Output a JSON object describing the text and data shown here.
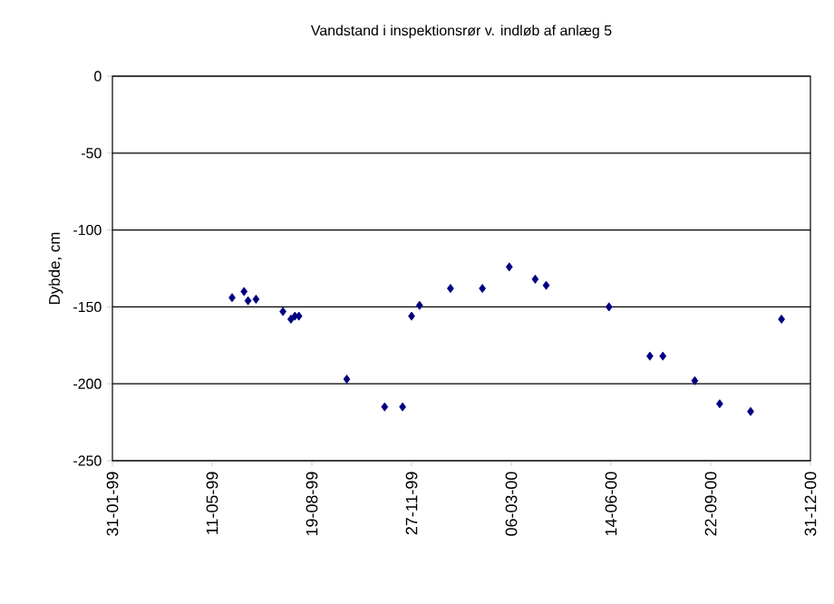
{
  "chart_data": {
    "type": "scatter",
    "title": "Vandstand i inspektionsrør v. indløb af anlæg 5",
    "ylabel": "Dybde, cm",
    "x": [
      "1999-05-31",
      "1999-06-12",
      "1999-06-16",
      "1999-06-24",
      "1999-07-21",
      "1999-07-29",
      "1999-08-02",
      "1999-08-06",
      "1999-09-23",
      "1999-10-31",
      "1999-11-18",
      "1999-11-27",
      "1999-12-05",
      "2000-01-05",
      "2000-02-06",
      "2000-03-04",
      "2000-03-30",
      "2000-04-10",
      "2000-06-12",
      "2000-07-23",
      "2000-08-05",
      "2000-09-06",
      "2000-10-01",
      "2000-11-01",
      "2000-12-02"
    ],
    "values": [
      -144,
      -140,
      -146,
      -145,
      -153,
      -158,
      -156,
      -156,
      -197,
      -215,
      -215,
      -156,
      -149,
      -138,
      -138,
      -124,
      -132,
      -136,
      -150,
      -182,
      -182,
      -198,
      -213,
      -218,
      -158
    ],
    "color": "#000080",
    "marker": "diamond",
    "grid": "y",
    "xlim": [
      "1999-01-31",
      "2000-12-31"
    ],
    "xticks": [
      {
        "value": "1999-01-31",
        "label": "31-01-99"
      },
      {
        "value": "1999-05-11",
        "label": "11-05-99"
      },
      {
        "value": "1999-08-19",
        "label": "19-08-99"
      },
      {
        "value": "1999-11-27",
        "label": "27-11-99"
      },
      {
        "value": "2000-03-06",
        "label": "06-03-00"
      },
      {
        "value": "2000-06-14",
        "label": "14-06-00"
      },
      {
        "value": "2000-09-22",
        "label": "22-09-00"
      },
      {
        "value": "2000-12-31",
        "label": "31-12-00"
      }
    ],
    "ylim": [
      -250,
      0
    ],
    "yticks": [
      -250,
      -200,
      -150,
      -100,
      -50,
      0
    ]
  }
}
